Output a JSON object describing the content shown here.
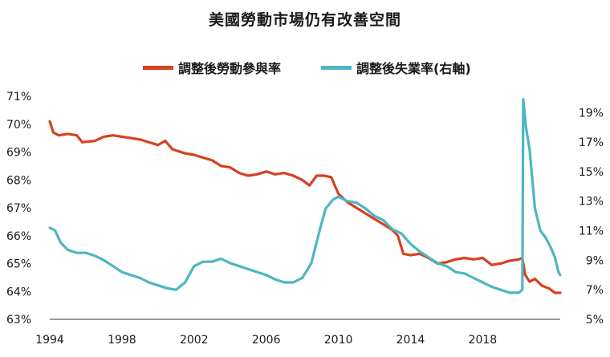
{
  "chart_data": {
    "type": "line",
    "title": "美國勞動市場仍有改善空間",
    "x_ticks": [
      "1994",
      "1998",
      "2002",
      "2006",
      "2010",
      "2014",
      "2018"
    ],
    "x_range": [
      1994,
      2022.3
    ],
    "y_left": {
      "ticks": [
        "63%",
        "64%",
        "65%",
        "66%",
        "67%",
        "68%",
        "69%",
        "70%",
        "71%"
      ],
      "range": [
        63,
        71
      ]
    },
    "y_right": {
      "ticks": [
        "5%",
        "7%",
        "9%",
        "11%",
        "13%",
        "15%",
        "17%",
        "19%"
      ],
      "range": [
        5,
        20.1
      ]
    },
    "legend_position": "top-center",
    "series": [
      {
        "name": "調整後勞動參與率",
        "axis": "left",
        "color": "#d8401f",
        "points": [
          [
            1994.0,
            70.1
          ],
          [
            1994.2,
            69.7
          ],
          [
            1994.5,
            69.6
          ],
          [
            1995.0,
            69.65
          ],
          [
            1995.5,
            69.6
          ],
          [
            1995.8,
            69.35
          ],
          [
            1996.5,
            69.4
          ],
          [
            1997.0,
            69.55
          ],
          [
            1997.5,
            69.6
          ],
          [
            1998.0,
            69.55
          ],
          [
            1998.5,
            69.5
          ],
          [
            1999.0,
            69.45
          ],
          [
            1999.5,
            69.35
          ],
          [
            2000.0,
            69.25
          ],
          [
            2000.4,
            69.4
          ],
          [
            2000.8,
            69.1
          ],
          [
            2001.5,
            68.95
          ],
          [
            2002.0,
            68.9
          ],
          [
            2002.5,
            68.8
          ],
          [
            2003.0,
            68.7
          ],
          [
            2003.5,
            68.5
          ],
          [
            2004.0,
            68.45
          ],
          [
            2004.5,
            68.25
          ],
          [
            2005.0,
            68.15
          ],
          [
            2005.5,
            68.2
          ],
          [
            2006.0,
            68.3
          ],
          [
            2006.5,
            68.2
          ],
          [
            2007.0,
            68.25
          ],
          [
            2007.5,
            68.15
          ],
          [
            2008.0,
            68.0
          ],
          [
            2008.4,
            67.8
          ],
          [
            2008.8,
            68.15
          ],
          [
            2009.2,
            68.15
          ],
          [
            2009.6,
            68.1
          ],
          [
            2010.0,
            67.5
          ],
          [
            2010.5,
            67.2
          ],
          [
            2011.0,
            67.0
          ],
          [
            2011.5,
            66.8
          ],
          [
            2012.0,
            66.6
          ],
          [
            2012.5,
            66.4
          ],
          [
            2013.0,
            66.2
          ],
          [
            2013.3,
            66.0
          ],
          [
            2013.6,
            65.35
          ],
          [
            2014.0,
            65.3
          ],
          [
            2014.5,
            65.35
          ],
          [
            2015.0,
            65.2
          ],
          [
            2015.5,
            65.0
          ],
          [
            2016.0,
            65.05
          ],
          [
            2016.5,
            65.15
          ],
          [
            2017.0,
            65.2
          ],
          [
            2017.5,
            65.15
          ],
          [
            2018.0,
            65.2
          ],
          [
            2018.5,
            64.95
          ],
          [
            2019.0,
            65.0
          ],
          [
            2019.5,
            65.1
          ],
          [
            2020.0,
            65.15
          ],
          [
            2020.2,
            65.2
          ],
          [
            2020.35,
            64.6
          ],
          [
            2020.6,
            64.35
          ],
          [
            2020.9,
            64.45
          ],
          [
            2021.3,
            64.2
          ],
          [
            2021.7,
            64.1
          ],
          [
            2022.0,
            63.95
          ],
          [
            2022.3,
            63.95
          ]
        ]
      },
      {
        "name": "調整後失業率(右軸)",
        "axis": "right",
        "color": "#4db6c2",
        "points": [
          [
            1994.0,
            11.2
          ],
          [
            1994.3,
            11.0
          ],
          [
            1994.6,
            10.2
          ],
          [
            1995.0,
            9.7
          ],
          [
            1995.5,
            9.5
          ],
          [
            1996.0,
            9.5
          ],
          [
            1996.5,
            9.3
          ],
          [
            1997.0,
            9.0
          ],
          [
            1997.5,
            8.6
          ],
          [
            1998.0,
            8.2
          ],
          [
            1998.5,
            8.0
          ],
          [
            1999.0,
            7.8
          ],
          [
            1999.5,
            7.5
          ],
          [
            2000.0,
            7.3
          ],
          [
            2000.5,
            7.1
          ],
          [
            2001.0,
            7.0
          ],
          [
            2001.5,
            7.5
          ],
          [
            2002.0,
            8.6
          ],
          [
            2002.5,
            8.9
          ],
          [
            2003.0,
            8.9
          ],
          [
            2003.5,
            9.1
          ],
          [
            2004.0,
            8.8
          ],
          [
            2004.5,
            8.6
          ],
          [
            2005.0,
            8.4
          ],
          [
            2005.5,
            8.2
          ],
          [
            2006.0,
            8.0
          ],
          [
            2006.5,
            7.7
          ],
          [
            2007.0,
            7.5
          ],
          [
            2007.5,
            7.5
          ],
          [
            2008.0,
            7.8
          ],
          [
            2008.5,
            8.8
          ],
          [
            2009.0,
            11.2
          ],
          [
            2009.3,
            12.5
          ],
          [
            2009.7,
            13.1
          ],
          [
            2010.0,
            13.3
          ],
          [
            2010.5,
            13.0
          ],
          [
            2011.0,
            12.9
          ],
          [
            2011.5,
            12.5
          ],
          [
            2012.0,
            12.0
          ],
          [
            2012.5,
            11.7
          ],
          [
            2013.0,
            11.1
          ],
          [
            2013.5,
            10.8
          ],
          [
            2014.0,
            10.1
          ],
          [
            2014.5,
            9.6
          ],
          [
            2015.0,
            9.2
          ],
          [
            2015.5,
            8.8
          ],
          [
            2016.0,
            8.6
          ],
          [
            2016.5,
            8.2
          ],
          [
            2017.0,
            8.1
          ],
          [
            2017.5,
            7.8
          ],
          [
            2018.0,
            7.5
          ],
          [
            2018.5,
            7.2
          ],
          [
            2019.0,
            7.0
          ],
          [
            2019.5,
            6.8
          ],
          [
            2020.0,
            6.8
          ],
          [
            2020.2,
            7.0
          ],
          [
            2020.25,
            19.9
          ],
          [
            2020.4,
            18.0
          ],
          [
            2020.6,
            16.5
          ],
          [
            2020.9,
            12.5
          ],
          [
            2021.2,
            11.0
          ],
          [
            2021.5,
            10.5
          ],
          [
            2021.8,
            9.8
          ],
          [
            2022.0,
            9.2
          ],
          [
            2022.2,
            8.2
          ],
          [
            2022.3,
            8.0
          ]
        ]
      }
    ]
  }
}
